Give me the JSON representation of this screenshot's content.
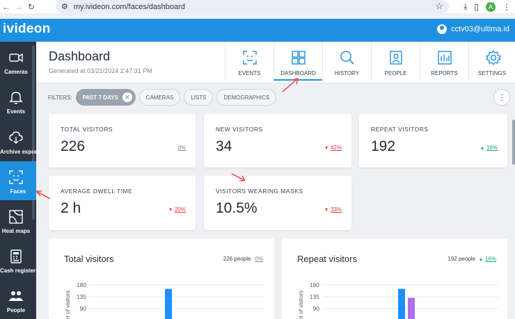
{
  "browser": {
    "url": "my.ivideon.com/faces/dashboard",
    "profile_initial": "A"
  },
  "app": {
    "brand": "ivideon",
    "user_email": "cctv03@ultima.id"
  },
  "sidebar": {
    "items": [
      {
        "label": "Cameras",
        "icon": "camera-icon"
      },
      {
        "label": "Events",
        "icon": "bell-icon"
      },
      {
        "label": "Archive export",
        "icon": "cloud-download-icon"
      },
      {
        "label": "Faces",
        "icon": "face-scan-icon",
        "active": true
      },
      {
        "label": "Heat maps",
        "icon": "heatmap-icon"
      },
      {
        "label": "Cash registers",
        "icon": "cash-register-icon"
      },
      {
        "label": "People",
        "icon": "people-icon"
      }
    ]
  },
  "header": {
    "title": "Dashboard",
    "generated": "Generated at 03/21/2024 2:47:31 PM",
    "tabs": [
      {
        "label": "EVENTS",
        "icon": "face-scan-icon"
      },
      {
        "label": "DASHBOARD",
        "icon": "dashboard-grid-icon",
        "active": true
      },
      {
        "label": "HISTORY",
        "icon": "search-icon"
      },
      {
        "label": "PEOPLE",
        "icon": "person-card-icon"
      },
      {
        "label": "REPORTS",
        "icon": "bar-chart-icon"
      },
      {
        "label": "SETTINGS",
        "icon": "gear-icon"
      }
    ]
  },
  "filters": {
    "label": "FILTERS:",
    "selected": "PAST 7 DAYS",
    "chips": [
      "CAMERAS",
      "LISTS",
      "DEMOGRAPHICS"
    ],
    "more": "⋮"
  },
  "stats": [
    {
      "title": "TOTAL VISITORS",
      "value": "226",
      "delta": "0%",
      "trend": "neutral"
    },
    {
      "title": "NEW VISITORS",
      "value": "34",
      "delta": "42%",
      "trend": "down"
    },
    {
      "title": "REPEAT VISITORS",
      "value": "192",
      "delta": "16%",
      "trend": "up"
    },
    {
      "title": "AVERAGE DWELL TIME",
      "value": "2 h",
      "delta": "20%",
      "trend": "down"
    },
    {
      "title": "VISITORS WEARING MASKS",
      "value": "10.5%",
      "delta": "33%",
      "trend": "down"
    }
  ],
  "charts": [
    {
      "title": "Total visitors",
      "summary": "226 people",
      "delta": "0%",
      "trend": "neutral"
    },
    {
      "title": "Repeat visitors",
      "summary": "192 people",
      "delta": "16%",
      "trend": "up"
    }
  ],
  "chart_data": [
    {
      "type": "bar",
      "title": "Total visitors",
      "ylabel": "er of visitors",
      "yticks": [
        180,
        135,
        90
      ],
      "series": [
        {
          "values": [
            165
          ],
          "color": "#1e90ff"
        }
      ]
    },
    {
      "type": "bar",
      "title": "Repeat visitors",
      "ylabel": "er of visitors",
      "yticks": [
        180,
        135,
        90
      ],
      "series": [
        {
          "values": [
            165
          ],
          "color": "#1e90ff"
        },
        {
          "values": [
            131
          ],
          "color": "#b06ee8"
        }
      ]
    }
  ],
  "colors": {
    "brand_blue": "#1e90e0",
    "sidebar_bg": "#2b3642",
    "down": "#e53935",
    "up": "#21a366",
    "annotation": "#e8534a"
  }
}
